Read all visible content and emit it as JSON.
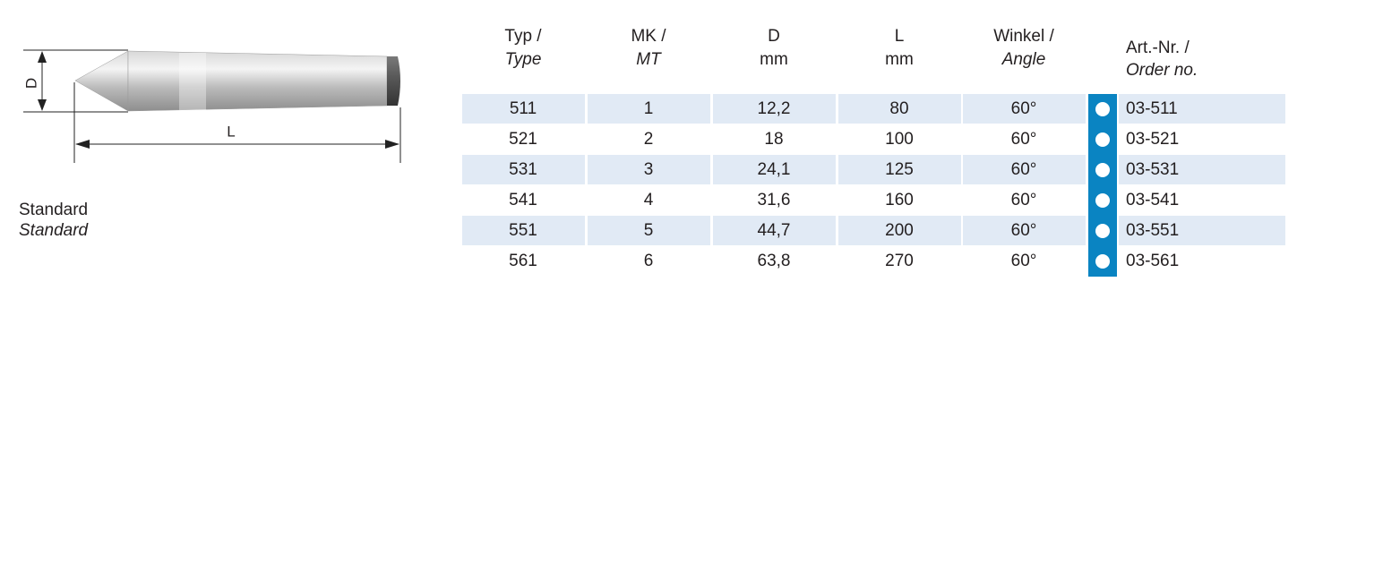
{
  "drawing": {
    "dim_d": "D",
    "dim_l": "L"
  },
  "caption": {
    "line1": "Standard",
    "line2": "Standard"
  },
  "table": {
    "headers": [
      [
        "Typ /",
        "Type"
      ],
      [
        "MK /",
        "MT"
      ],
      [
        "D",
        "mm"
      ],
      [
        "L",
        "mm"
      ],
      [
        "Winkel /",
        "Angle"
      ],
      [
        "Art.-Nr. /",
        "Order no."
      ]
    ],
    "rows": [
      [
        "511",
        "1",
        "12,2",
        "80",
        "60°",
        "03-511"
      ],
      [
        "521",
        "2",
        "18",
        "100",
        "60°",
        "03-521"
      ],
      [
        "531",
        "3",
        "24,1",
        "125",
        "60°",
        "03-531"
      ],
      [
        "541",
        "4",
        "31,6",
        "160",
        "60°",
        "03-541"
      ],
      [
        "551",
        "5",
        "44,7",
        "200",
        "60°",
        "03-551"
      ],
      [
        "561",
        "6",
        "63,8",
        "270",
        "60°",
        "03-561"
      ]
    ]
  }
}
